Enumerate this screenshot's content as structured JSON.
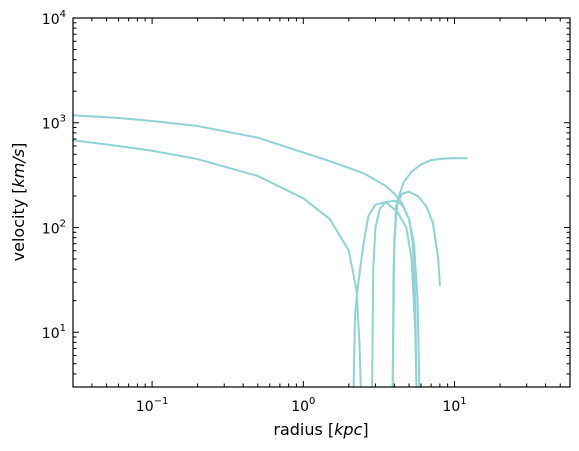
{
  "chart_data": {
    "type": "line",
    "xlabel": "radius [",
    "xlabel_unit": "kpc",
    "xlabel_close": "]",
    "ylabel": "velocity [",
    "ylabel_unit": "km/s",
    "ylabel_close": "]",
    "xscale": "log",
    "yscale": "log",
    "xlim": [
      0.03,
      58
    ],
    "ylim": [
      3,
      10000
    ],
    "x_ticks": [
      {
        "value": 0.1,
        "base": "10",
        "exp": "−1"
      },
      {
        "value": 1,
        "base": "10",
        "exp": "0"
      },
      {
        "value": 10,
        "base": "10",
        "exp": "1"
      }
    ],
    "y_ticks": [
      {
        "value": 10,
        "base": "10",
        "exp": "1"
      },
      {
        "value": 100,
        "base": "10",
        "exp": "2"
      },
      {
        "value": 1000,
        "base": "10",
        "exp": "3"
      },
      {
        "value": 10000,
        "base": "10",
        "exp": "4"
      }
    ],
    "grid": false,
    "line_color": "#8fd3d6",
    "series": [
      {
        "x": [
          0.03,
          0.06,
          0.1,
          0.2,
          0.5,
          1.0,
          1.5,
          2.5,
          3.5,
          4.0,
          4.5,
          5.0,
          5.4,
          5.7,
          5.85
        ],
        "y": [
          1180,
          1110,
          1040,
          930,
          720,
          520,
          430,
          330,
          250,
          210,
          170,
          120,
          70,
          20,
          3
        ]
      },
      {
        "x": [
          0.03,
          0.06,
          0.1,
          0.2,
          0.5,
          1.0,
          1.5,
          2.0,
          2.25,
          2.35,
          2.4
        ],
        "y": [
          680,
          600,
          540,
          450,
          310,
          190,
          120,
          60,
          25,
          8,
          3
        ]
      },
      {
        "x": [
          2.15,
          2.2,
          2.3,
          2.4,
          2.5,
          2.7,
          3.0,
          3.5,
          4.2,
          4.8,
          5.2,
          5.5,
          5.6
        ],
        "y": [
          3,
          15,
          28,
          45,
          70,
          130,
          165,
          175,
          140,
          100,
          50,
          10,
          3
        ]
      },
      {
        "x": [
          2.85,
          2.9,
          3.0,
          3.2,
          3.5,
          4.0,
          4.5,
          5.0,
          5.3,
          5.5,
          5.6
        ],
        "y": [
          3,
          40,
          100,
          150,
          175,
          180,
          165,
          120,
          70,
          20,
          3
        ]
      },
      {
        "x": [
          3.9,
          3.95,
          4.1,
          4.5,
          5.0,
          5.7,
          6.5,
          7.2,
          7.8,
          8.0
        ],
        "y": [
          3,
          40,
          160,
          210,
          220,
          200,
          160,
          110,
          50,
          28
        ]
      },
      {
        "x": [
          3.9,
          4.0,
          4.2,
          4.6,
          5.2,
          6.0,
          7.0,
          8.5,
          10.0,
          12.0
        ],
        "y": [
          3,
          80,
          180,
          270,
          340,
          400,
          440,
          455,
          460,
          458
        ]
      }
    ]
  }
}
